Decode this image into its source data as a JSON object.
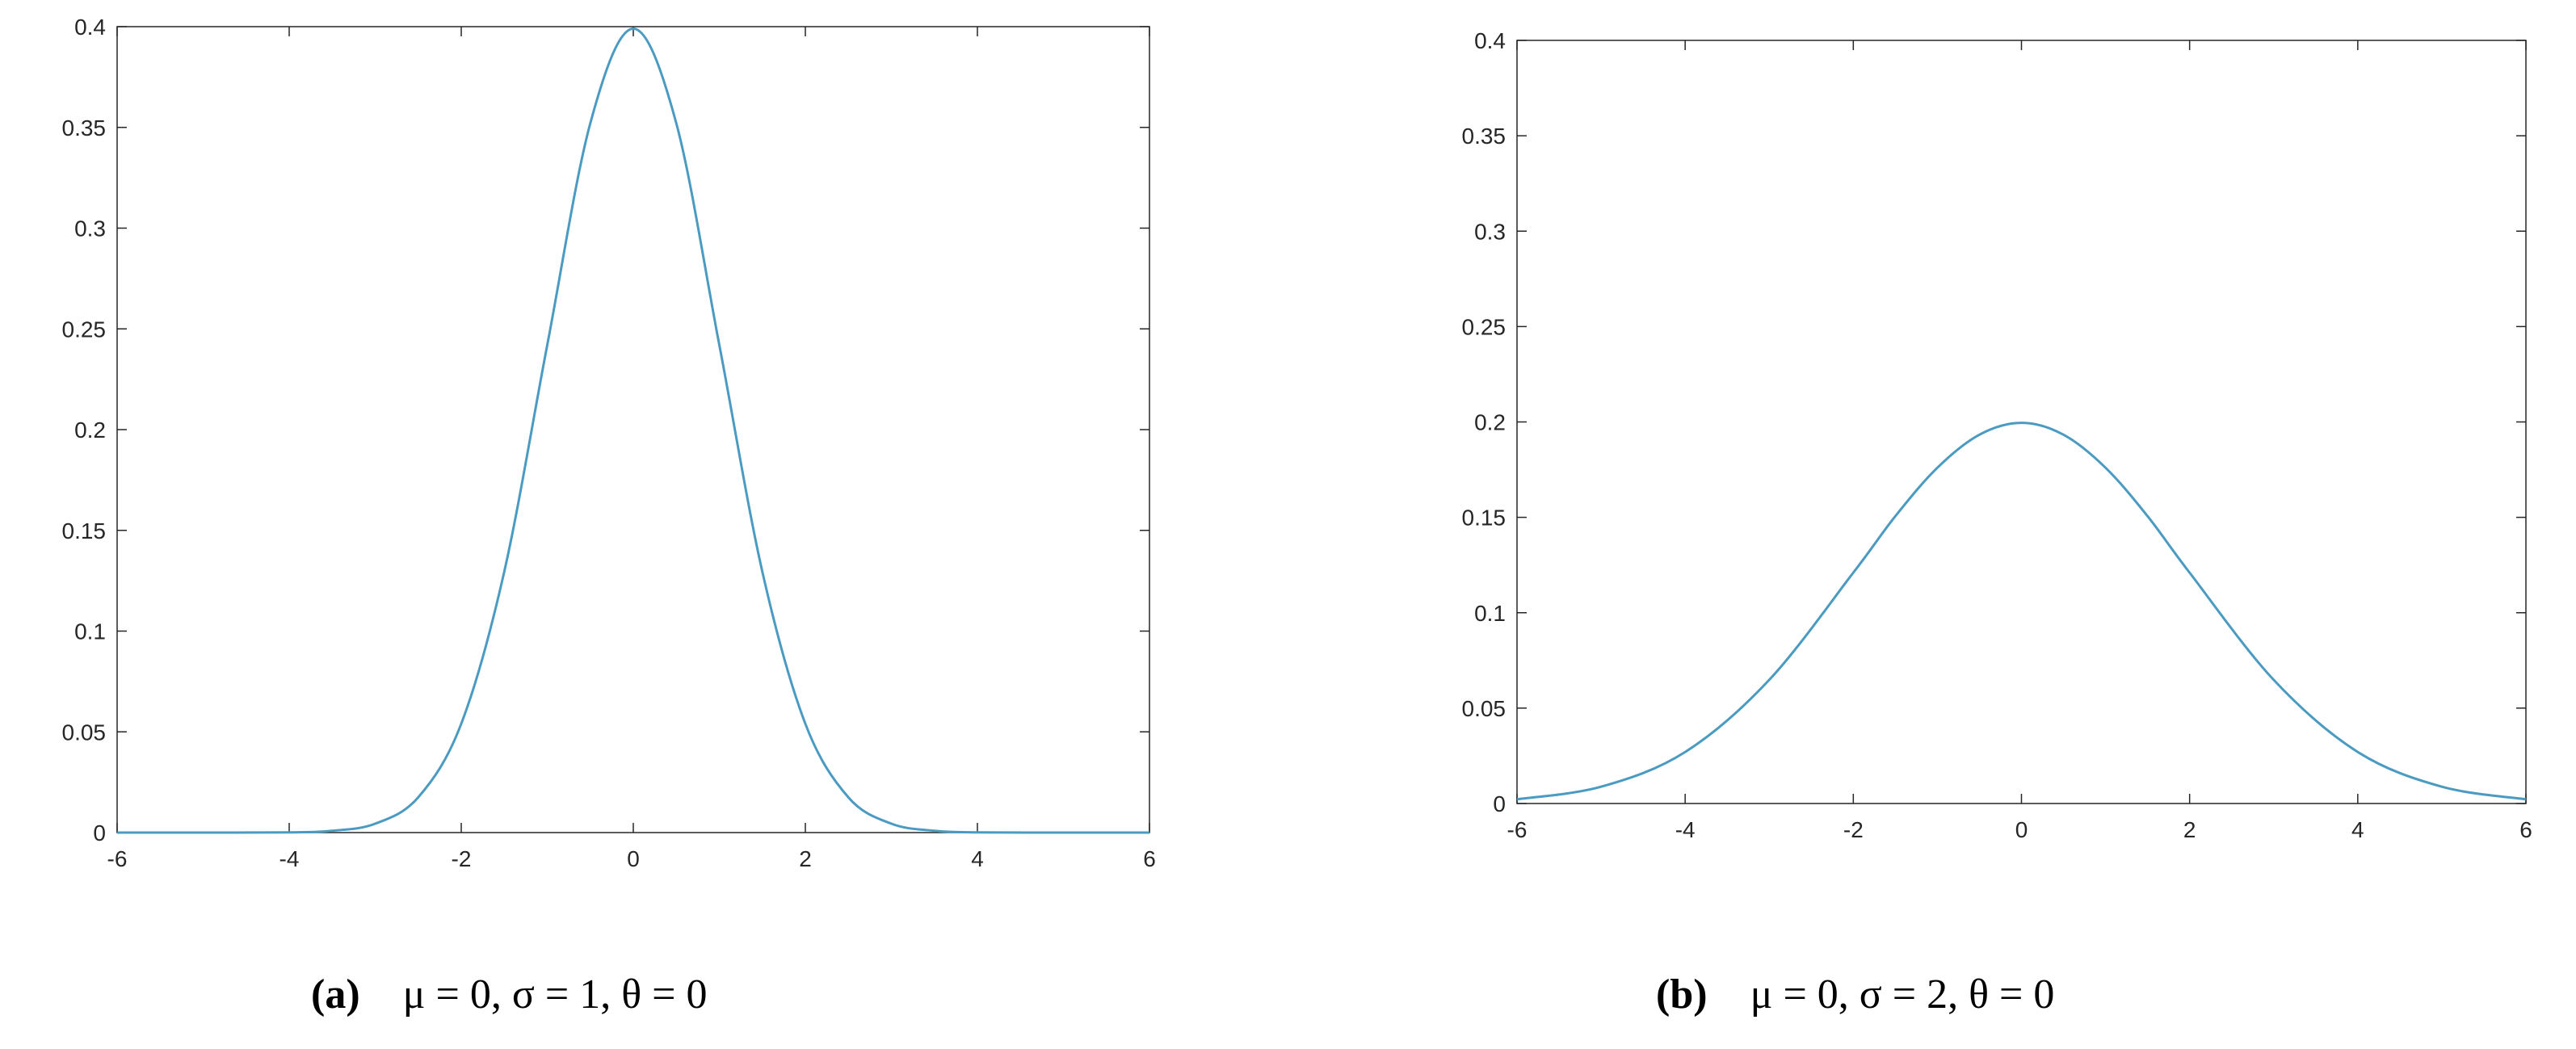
{
  "chart_data": [
    {
      "type": "line",
      "title": "",
      "xlabel": "",
      "ylabel": "",
      "xlim": [
        -6,
        6
      ],
      "ylim": [
        0,
        0.4
      ],
      "xticks": [
        "-6",
        "-4",
        "-2",
        "0",
        "2",
        "4",
        "6"
      ],
      "yticks": [
        "0",
        "0.05",
        "0.1",
        "0.15",
        "0.2",
        "0.25",
        "0.3",
        "0.35",
        "0.4"
      ],
      "grid": false,
      "line_color": "#4a9ac2",
      "series": [
        {
          "x": [
            -6,
            -5,
            -4,
            -3.5,
            -3,
            -2.5,
            -2,
            -1.5,
            -1,
            -0.5,
            0,
            0.5,
            1,
            1.5,
            2,
            2.5,
            3,
            3.5,
            4,
            5,
            6
          ],
          "values": [
            0.0,
            0.0,
            0.0001,
            0.0009,
            0.0044,
            0.0175,
            0.054,
            0.1295,
            0.242,
            0.352,
            0.399,
            0.352,
            0.242,
            0.1295,
            0.054,
            0.0175,
            0.0044,
            0.0009,
            0.0001,
            0.0,
            0.0
          ]
        }
      ],
      "caption": {
        "label": "(a)",
        "params": "μ = 0, σ = 1, θ = 0"
      }
    },
    {
      "type": "line",
      "title": "",
      "xlabel": "",
      "ylabel": "",
      "xlim": [
        -6,
        6
      ],
      "ylim": [
        0,
        0.4
      ],
      "xticks": [
        "-6",
        "-4",
        "-2",
        "0",
        "2",
        "4",
        "6"
      ],
      "yticks": [
        "0",
        "0.05",
        "0.1",
        "0.15",
        "0.2",
        "0.25",
        "0.3",
        "0.35",
        "0.4"
      ],
      "grid": false,
      "line_color": "#4a9ac2",
      "series": [
        {
          "x": [
            -6,
            -5,
            -4,
            -3,
            -2,
            -1.5,
            -1,
            -0.5,
            0,
            0.5,
            1,
            1.5,
            2,
            3,
            4,
            5,
            6
          ],
          "values": [
            0.0022,
            0.0088,
            0.027,
            0.0648,
            0.121,
            0.1506,
            0.176,
            0.1933,
            0.1995,
            0.1933,
            0.176,
            0.1506,
            0.121,
            0.0648,
            0.027,
            0.0088,
            0.0022
          ]
        }
      ],
      "caption": {
        "label": "(b)",
        "params": "μ = 0, σ = 2, θ = 0"
      }
    }
  ]
}
